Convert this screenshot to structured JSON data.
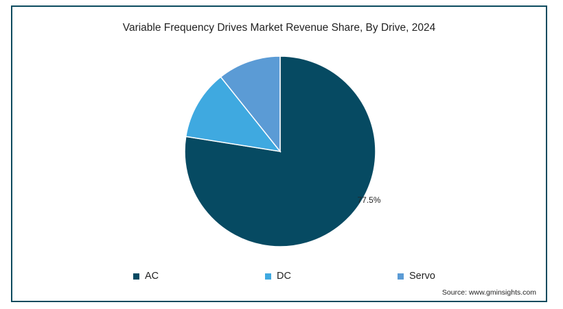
{
  "chart_data": {
    "type": "pie",
    "title": "Variable Frequency Drives Market Revenue Share, By Drive, 2024",
    "categories": [
      "AC",
      "DC",
      "Servo"
    ],
    "values": [
      77.5,
      11.8,
      10.7
    ],
    "colors": [
      "#064a62",
      "#3fa9e0",
      "#5b9bd5"
    ],
    "data_labels": [
      "77.5%",
      "",
      ""
    ],
    "legend_placement": "bottom"
  },
  "source": "Source: www.gminsights.com"
}
